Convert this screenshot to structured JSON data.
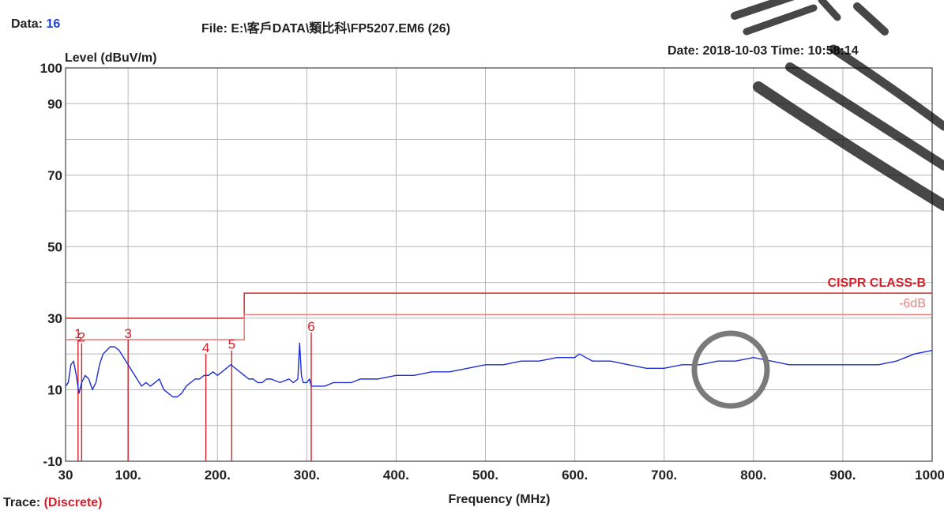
{
  "header": {
    "data_label": "Data:",
    "data_value": "16",
    "file_text": "File: E:\\客戶DATA\\類比科\\FP5207.EM6  (26)",
    "date_time": "Date: 2018-10-03  Time: 10:58:14"
  },
  "footer": {
    "trace_label": "Trace:",
    "trace_value": "(Discrete)"
  },
  "colors": {
    "trace": "#1f2fcf",
    "limit": "#d63a3a",
    "margin": "#e88080",
    "marker": "#d4202a",
    "grid": "#b8b8b8",
    "watermark": "#000000"
  },
  "chart_data": {
    "type": "line",
    "xlabel": "Frequency (MHz)",
    "ylabel": "Level (dBuV/m)",
    "xlim": [
      30,
      1000
    ],
    "ylim": [
      -10,
      100
    ],
    "x_ticks": [
      30,
      100,
      200,
      300,
      400,
      500,
      600,
      700,
      800,
      900,
      1000
    ],
    "x_tick_labels": [
      "30",
      "100.",
      "200.",
      "300.",
      "400.",
      "500.",
      "600.",
      "700.",
      "800.",
      "900.",
      "1000"
    ],
    "y_ticks": [
      100,
      90,
      70,
      50,
      30,
      10,
      -10
    ],
    "y_grid": [
      100,
      90,
      80,
      70,
      60,
      50,
      40,
      30,
      20,
      10,
      0,
      -10
    ],
    "grid": true,
    "series": [
      {
        "name": "",
        "x": [
          30,
          33,
          36,
          39,
          42,
          45,
          48,
          52,
          56,
          60,
          64,
          68,
          72,
          76,
          80,
          85,
          90,
          95,
          100,
          105,
          110,
          115,
          120,
          125,
          130,
          135,
          140,
          145,
          150,
          155,
          160,
          165,
          170,
          175,
          180,
          185,
          190,
          195,
          200,
          205,
          210,
          215,
          220,
          225,
          230,
          235,
          240,
          245,
          250,
          255,
          260,
          270,
          280,
          285,
          290,
          292,
          294,
          296,
          300,
          303,
          305,
          310,
          320,
          330,
          340,
          350,
          360,
          370,
          380,
          400,
          420,
          440,
          460,
          480,
          500,
          520,
          540,
          560,
          580,
          600,
          605,
          620,
          640,
          660,
          680,
          700,
          720,
          740,
          760,
          780,
          800,
          820,
          840,
          860,
          880,
          900,
          920,
          940,
          960,
          980,
          1000
        ],
        "y": [
          11,
          12,
          17,
          18,
          14,
          9,
          12,
          14,
          13,
          10,
          12,
          17,
          20,
          21,
          22,
          22,
          21,
          19,
          17,
          15,
          13,
          11,
          12,
          11,
          12,
          13,
          10,
          9,
          8,
          8,
          9,
          11,
          12,
          13,
          13,
          14,
          14,
          15,
          14,
          15,
          16,
          17,
          16,
          15,
          14,
          13,
          13,
          12,
          12,
          13,
          13,
          12,
          13,
          12,
          13,
          23,
          14,
          12,
          12,
          13,
          11,
          11,
          11,
          12,
          12,
          12,
          13,
          13,
          13,
          14,
          14,
          15,
          15,
          16,
          17,
          17,
          18,
          18,
          19,
          19,
          20,
          18,
          18,
          17,
          16,
          16,
          17,
          17,
          18,
          18,
          19,
          18,
          17,
          17,
          17,
          17,
          17,
          17,
          18,
          20,
          21
        ]
      }
    ],
    "limit": {
      "label": "CISPR CLASS-B",
      "segments": [
        {
          "x": [
            30,
            230
          ],
          "y": 30
        },
        {
          "x": [
            230,
            1000
          ],
          "y": 37
        }
      ]
    },
    "margin_line": {
      "label": "-6dB",
      "segments": [
        {
          "x": [
            30,
            230
          ],
          "y": 24
        },
        {
          "x": [
            230,
            1000
          ],
          "y": 31
        }
      ]
    },
    "markers": [
      {
        "id": "1",
        "x": 44,
        "y": 24
      },
      {
        "id": "2",
        "x": 48,
        "y": 23
      },
      {
        "id": "3",
        "x": 100,
        "y": 24
      },
      {
        "id": "4",
        "x": 187,
        "y": 20
      },
      {
        "id": "5",
        "x": 216,
        "y": 21
      },
      {
        "id": "6",
        "x": 305,
        "y": 26
      }
    ]
  }
}
